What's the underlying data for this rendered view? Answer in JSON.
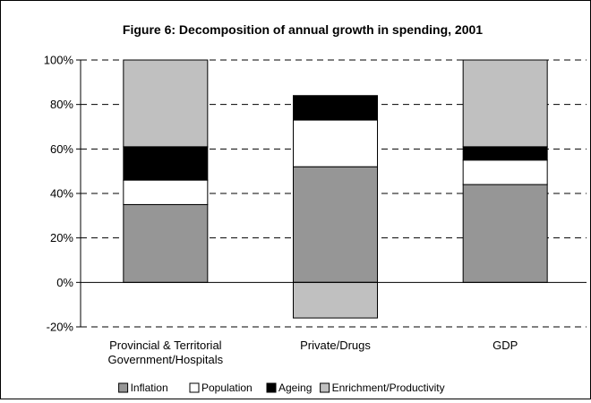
{
  "chart_data": {
    "type": "bar",
    "stacked": true,
    "title": "Figure 6: Decomposition of annual growth in spending, 2001",
    "xlabel": "",
    "ylabel": "",
    "ylim": [
      -20,
      100
    ],
    "yticks": [
      -20,
      0,
      20,
      40,
      60,
      80,
      100
    ],
    "ytick_labels": [
      "-20%",
      "0%",
      "20%",
      "40%",
      "60%",
      "80%",
      "100%"
    ],
    "grid": "dashed horizontal",
    "legend_position": "bottom",
    "categories": [
      [
        "Provincial & Territorial",
        "Government/Hospitals"
      ],
      [
        "Private/Drugs"
      ],
      [
        "GDP"
      ]
    ],
    "series": [
      {
        "name": "Inflation",
        "color": "#969696",
        "values": [
          35,
          52,
          44
        ]
      },
      {
        "name": "Population",
        "color": "#ffffff",
        "values": [
          11,
          21,
          11
        ]
      },
      {
        "name": "Ageing",
        "color": "#000000",
        "values": [
          15,
          11,
          6
        ]
      },
      {
        "name": "Enrichment/Productivity",
        "color": "#c0c0c0",
        "values": [
          39,
          -16,
          39
        ]
      }
    ]
  }
}
